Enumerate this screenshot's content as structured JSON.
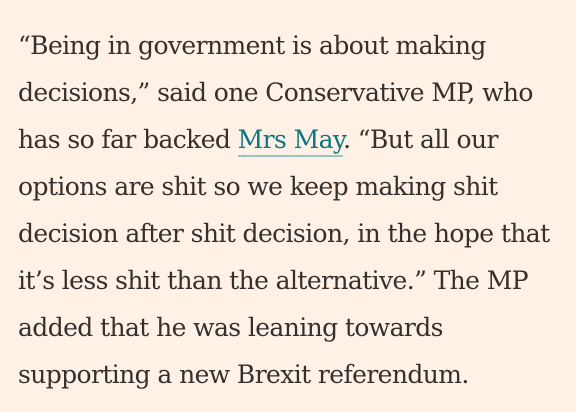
{
  "article": {
    "paragraph": {
      "line_1": "“Being in government is about making",
      "line_2": "decisions,” said one Conservative MP, who",
      "line_3_before_link": "has so far backed ",
      "link_text": "Mrs May",
      "line_3_after_link": ". “But all our",
      "line_4": "options are shit so we keep making shit",
      "line_5": "decision after shit decision, in the hope that",
      "line_6": "it’s less shit than the alternative.” The MP",
      "line_7": "added that he was leaning towards",
      "line_8": "supporting a new Brexit referendum."
    }
  },
  "colors": {
    "background": "#fff1e5",
    "text": "#33302e",
    "link": "#0d7680"
  }
}
